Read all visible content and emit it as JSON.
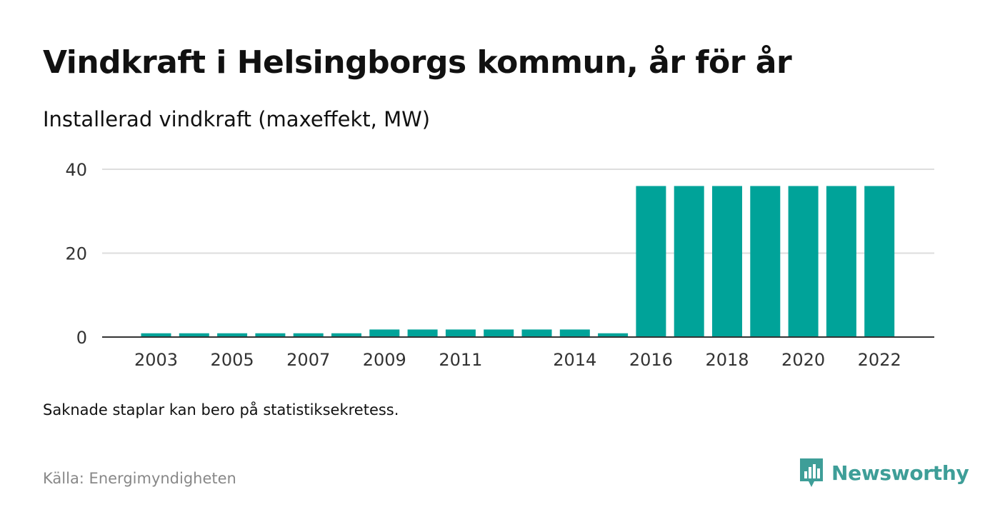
{
  "title": "Vindkraft i Helsingborgs kommun, år för år",
  "subtitle": "Installerad vindkraft (maxeffekt, MW)",
  "note": "Saknade staplar kan bero på statistiksekretess.",
  "source": "Källa: Energimyndigheten",
  "brand": {
    "name": "Newsworthy",
    "icon": "newsworthy-logo-icon"
  },
  "colors": {
    "bar": "#00a399",
    "grid": "#dddddd",
    "axis": "#333333",
    "brand": "#3e9e98"
  },
  "chart_data": {
    "type": "bar",
    "categories": [
      "2003",
      "2004",
      "2005",
      "2006",
      "2007",
      "2008",
      "2009",
      "2010",
      "2011",
      "2012",
      "2013",
      "2014",
      "2015",
      "2016",
      "2017",
      "2018",
      "2019",
      "2020",
      "2021",
      "2022"
    ],
    "tick_labels": [
      "2003",
      "",
      "2005",
      "",
      "2007",
      "",
      "2009",
      "",
      "2011",
      "",
      "",
      "2014",
      "",
      "2016",
      "",
      "2018",
      "",
      "2020",
      "",
      "2022"
    ],
    "values": [
      0.9,
      0.9,
      0.9,
      0.9,
      0.9,
      0.9,
      1.8,
      1.8,
      1.8,
      1.8,
      1.8,
      1.8,
      0.9,
      36,
      36,
      36,
      36,
      36,
      36,
      36
    ],
    "yticks": [
      0,
      20,
      40
    ],
    "ylim": [
      0,
      40
    ],
    "grid": true,
    "legend": "none"
  }
}
